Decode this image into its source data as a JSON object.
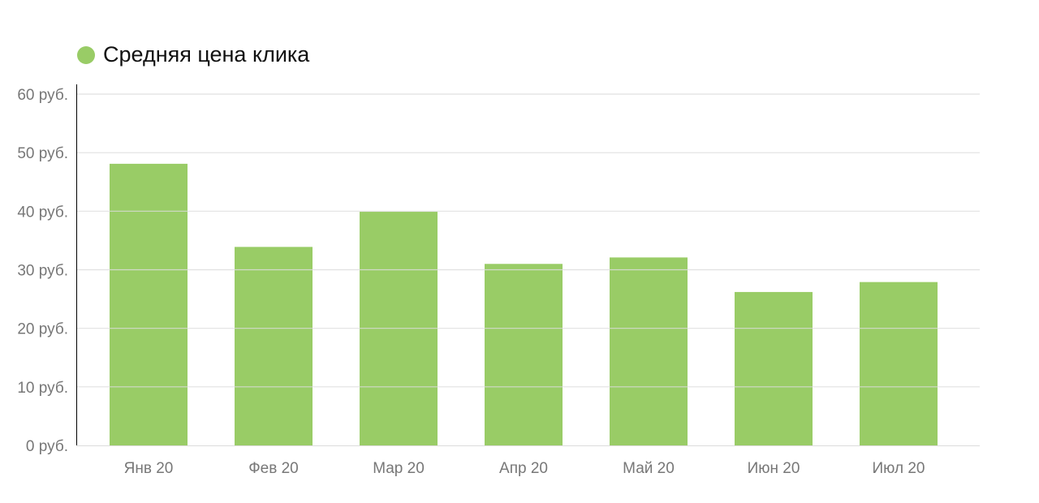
{
  "chart_data": {
    "type": "bar",
    "categories": [
      "Янв 20",
      "Фев 20",
      "Мар 20",
      "Апр 20",
      "Май 20",
      "Июн 20",
      "Июл 20"
    ],
    "series": [
      {
        "name": "Средняя цена клика",
        "values": [
          48.1,
          33.9,
          39.9,
          31.0,
          32.1,
          26.2,
          27.9
        ],
        "color": "#99cc66"
      }
    ],
    "ylim": [
      0,
      60
    ],
    "yticks": [
      0,
      10,
      20,
      30,
      40,
      50,
      60
    ],
    "ytick_labels": [
      "0 руб.",
      "10 руб.",
      "20 руб.",
      "30 руб.",
      "40 руб.",
      "50 руб.",
      "60 руб."
    ],
    "grid": true,
    "legend_position": "top-left"
  }
}
